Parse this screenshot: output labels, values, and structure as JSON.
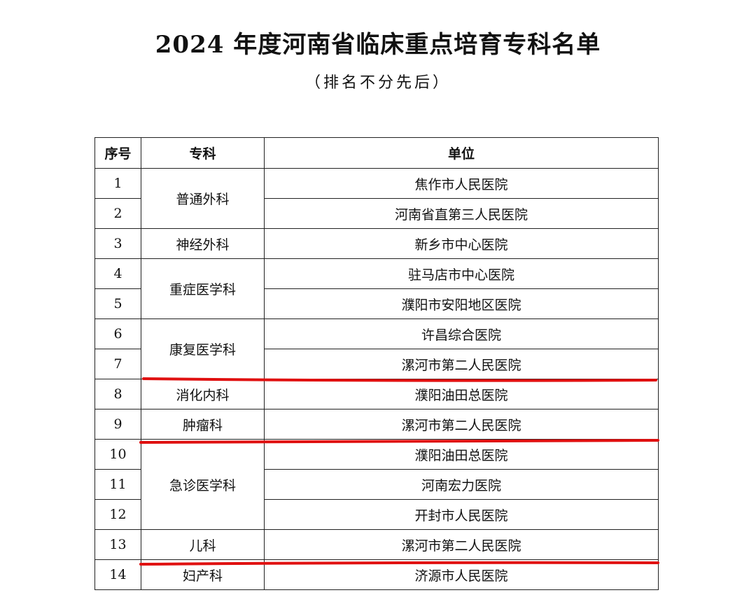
{
  "title": "2024 年度河南省临床重点培育专科名单",
  "subtitle": "（排名不分先后）",
  "table": {
    "headers": [
      "序号",
      "专科",
      "单位"
    ],
    "groups": [
      {
        "specialty": "普通外科",
        "rows": [
          {
            "no": "1",
            "unit": "焦作市人民医院"
          },
          {
            "no": "2",
            "unit": "河南省直第三人民医院"
          }
        ]
      },
      {
        "specialty": "神经外科",
        "rows": [
          {
            "no": "3",
            "unit": "新乡市中心医院"
          }
        ]
      },
      {
        "specialty": "重症医学科",
        "rows": [
          {
            "no": "4",
            "unit": "驻马店市中心医院"
          },
          {
            "no": "5",
            "unit": "濮阳市安阳地区医院"
          }
        ]
      },
      {
        "specialty": "康复医学科",
        "rows": [
          {
            "no": "6",
            "unit": "许昌综合医院"
          },
          {
            "no": "7",
            "unit": "漯河市第二人民医院"
          }
        ]
      },
      {
        "specialty": "消化内科",
        "rows": [
          {
            "no": "8",
            "unit": "濮阳油田总医院"
          }
        ]
      },
      {
        "specialty": "肿瘤科",
        "rows": [
          {
            "no": "9",
            "unit": "漯河市第二人民医院"
          }
        ]
      },
      {
        "specialty": "急诊医学科",
        "rows": [
          {
            "no": "10",
            "unit": "濮阳油田总医院"
          },
          {
            "no": "11",
            "unit": "河南宏力医院"
          },
          {
            "no": "12",
            "unit": "开封市人民医院"
          }
        ]
      },
      {
        "specialty": "儿科",
        "rows": [
          {
            "no": "13",
            "unit": "漯河市第二人民医院"
          }
        ]
      },
      {
        "specialty": "妇产科",
        "rows": [
          {
            "no": "14",
            "unit": "济源市人民医院"
          }
        ]
      }
    ]
  },
  "annotations": {
    "underline_color": "#e01010",
    "underlined_rows": [
      "7",
      "9",
      "13"
    ]
  }
}
